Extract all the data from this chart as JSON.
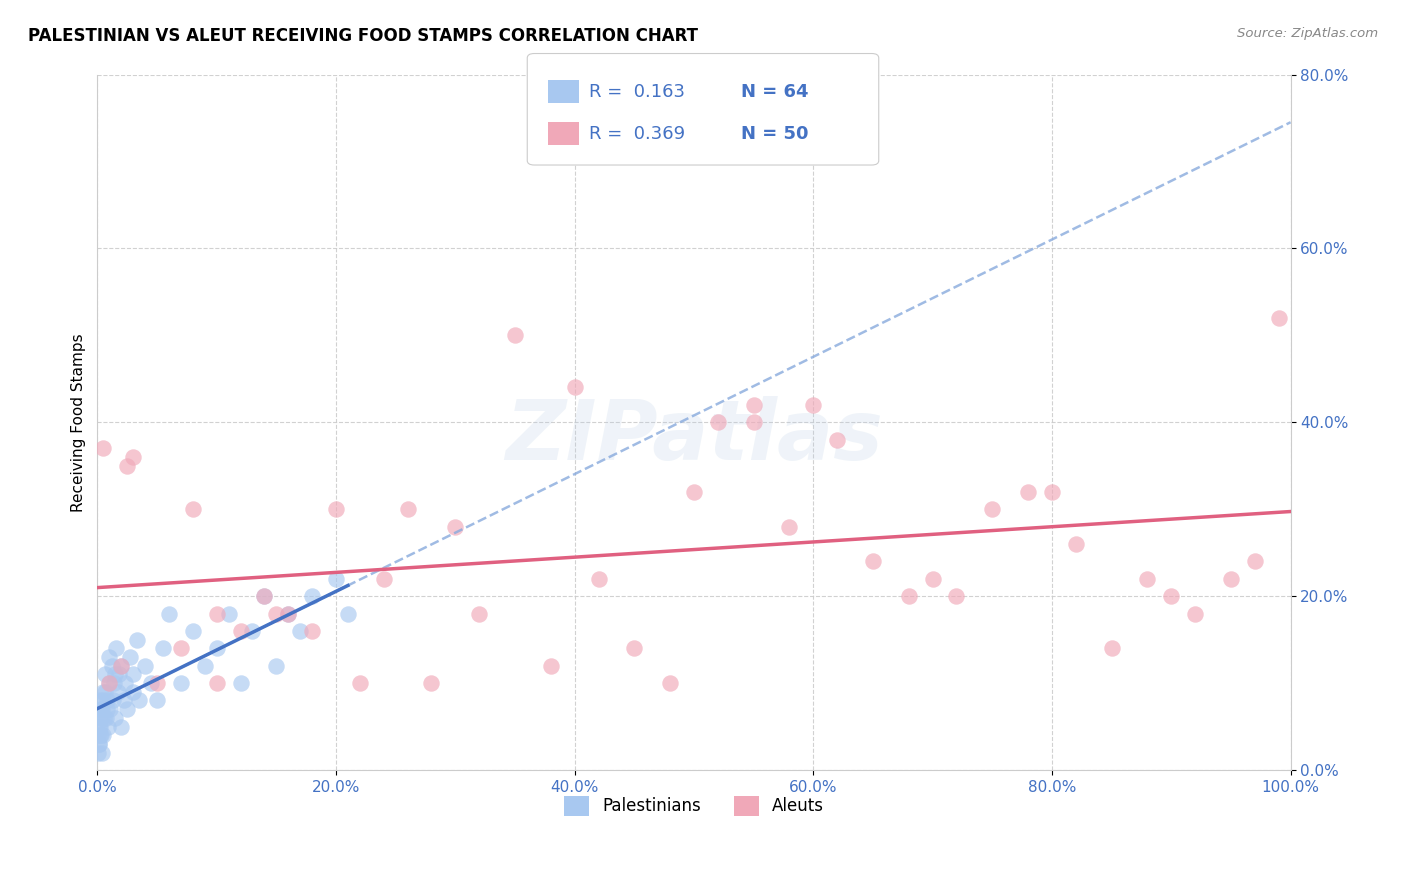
{
  "title": "PALESTINIAN VS ALEUT RECEIVING FOOD STAMPS CORRELATION CHART",
  "source": "Source: ZipAtlas.com",
  "ylabel": "Receiving Food Stamps",
  "watermark": "ZIPatlas",
  "legend_r_palestinian": "R =  0.163",
  "legend_n_palestinian": "N = 64",
  "legend_r_aleut": "R =  0.369",
  "legend_n_aleut": "N = 50",
  "xlim": [
    0,
    100
  ],
  "ylim": [
    0,
    80
  ],
  "xticks": [
    0,
    20,
    40,
    60,
    80,
    100
  ],
  "yticks": [
    0,
    20,
    40,
    60,
    80
  ],
  "xtick_labels": [
    "0.0%",
    "20.0%",
    "40.0%",
    "60.0%",
    "80.0%",
    "100.0%"
  ],
  "ytick_labels": [
    "0.0%",
    "20.0%",
    "40.0%",
    "60.0%",
    "80.0%"
  ],
  "color_palestinian": "#a8c8f0",
  "color_aleut": "#f0a8b8",
  "line_color_palestinian_solid": "#4472c4",
  "line_color_palestinian_dashed": "#88aadd",
  "line_color_aleut": "#e06080",
  "background_color": "#ffffff",
  "grid_color": "#cccccc",
  "palestinian_x": [
    0.1,
    0.15,
    0.2,
    0.25,
    0.3,
    0.35,
    0.4,
    0.5,
    0.5,
    0.6,
    0.7,
    0.8,
    0.9,
    1.0,
    1.0,
    1.1,
    1.2,
    1.3,
    1.4,
    1.5,
    1.6,
    1.7,
    1.8,
    2.0,
    2.0,
    2.2,
    2.3,
    2.5,
    2.7,
    3.0,
    3.0,
    3.3,
    3.5,
    4.0,
    4.5,
    5.0,
    5.5,
    6.0,
    7.0,
    8.0,
    9.0,
    10.0,
    11.0,
    12.0,
    13.0,
    14.0,
    15.0,
    16.0,
    17.0,
    18.0,
    20.0,
    21.0,
    0.05,
    0.08,
    0.12,
    0.18,
    0.22,
    0.28,
    0.32,
    0.45,
    0.55,
    0.65,
    0.85,
    1.5
  ],
  "palestinian_y": [
    3,
    5,
    8,
    4,
    6,
    2,
    7,
    9,
    4,
    11,
    6,
    8,
    5,
    10,
    13,
    7,
    12,
    8,
    10,
    6,
    14,
    9,
    11,
    5,
    12,
    8,
    10,
    7,
    13,
    9,
    11,
    15,
    8,
    12,
    10,
    8,
    14,
    18,
    10,
    16,
    12,
    14,
    18,
    10,
    16,
    20,
    12,
    18,
    16,
    20,
    22,
    18,
    2,
    4,
    3,
    6,
    5,
    7,
    4,
    8,
    6,
    9,
    7,
    11
  ],
  "aleut_x": [
    0.5,
    1.0,
    2.0,
    2.5,
    3.0,
    5.0,
    7.0,
    8.0,
    10.0,
    12.0,
    14.0,
    15.0,
    16.0,
    18.0,
    20.0,
    22.0,
    24.0,
    26.0,
    28.0,
    30.0,
    32.0,
    35.0,
    38.0,
    40.0,
    42.0,
    45.0,
    48.0,
    50.0,
    52.0,
    55.0,
    58.0,
    60.0,
    62.0,
    65.0,
    68.0,
    70.0,
    72.0,
    75.0,
    78.0,
    80.0,
    82.0,
    85.0,
    88.0,
    90.0,
    92.0,
    95.0,
    97.0,
    99.0,
    55.0,
    10.0
  ],
  "aleut_y": [
    37,
    10,
    12,
    35,
    36,
    10,
    14,
    30,
    10,
    16,
    20,
    18,
    18,
    16,
    30,
    10,
    22,
    30,
    10,
    28,
    18,
    50,
    12,
    44,
    22,
    14,
    10,
    32,
    40,
    42,
    28,
    42,
    38,
    24,
    20,
    22,
    20,
    30,
    32,
    32,
    26,
    14,
    22,
    20,
    18,
    22,
    24,
    52,
    40,
    18
  ]
}
